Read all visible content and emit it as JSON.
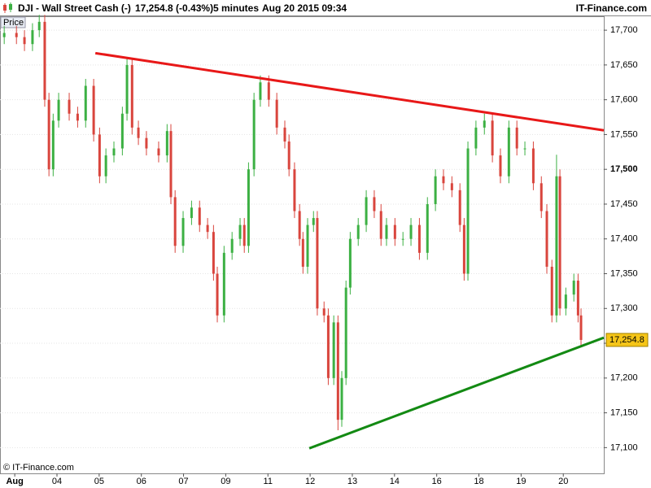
{
  "header": {
    "symbol": "DJI - Wall Street Cash (-)",
    "quote": "17,254.8 (-0.43%)",
    "interval": "5 minutes",
    "timestamp": "Aug 20 2015 09:34",
    "brand": "IT-Finance.com"
  },
  "chart_data": {
    "type": "candlestick",
    "axis_label": "Price",
    "copyright": "© IT-Finance.com",
    "up_color": "#3cb043",
    "down_color": "#d9453d",
    "grid": true,
    "bold_ytick": 17500,
    "xlim": [
      -0.35,
      13.96
    ],
    "ylim": [
      17063,
      17720
    ],
    "xticks": [
      {
        "value": 0,
        "label": "Aug"
      },
      {
        "value": 1,
        "label": "04"
      },
      {
        "value": 2,
        "label": "05"
      },
      {
        "value": 3,
        "label": "06"
      },
      {
        "value": 4,
        "label": "07"
      },
      {
        "value": 5,
        "label": "09"
      },
      {
        "value": 6,
        "label": "11"
      },
      {
        "value": 7,
        "label": "12"
      },
      {
        "value": 8,
        "label": "13"
      },
      {
        "value": 9,
        "label": "14"
      },
      {
        "value": 10,
        "label": "16"
      },
      {
        "value": 11,
        "label": "18"
      },
      {
        "value": 12,
        "label": "19"
      },
      {
        "value": 13,
        "label": "20"
      }
    ],
    "yticks": [
      {
        "value": 17100,
        "label": "17,100"
      },
      {
        "value": 17150,
        "label": "17,150"
      },
      {
        "value": 17200,
        "label": "17,200"
      },
      {
        "value": 17250,
        "label": "17,250"
      },
      {
        "value": 17300,
        "label": "17,300"
      },
      {
        "value": 17350,
        "label": "17,350"
      },
      {
        "value": 17400,
        "label": "17,400"
      },
      {
        "value": 17450,
        "label": "17,450"
      },
      {
        "value": 17500,
        "label": "17,500"
      },
      {
        "value": 17550,
        "label": "17,550"
      },
      {
        "value": 17600,
        "label": "17,600"
      },
      {
        "value": 17650,
        "label": "17,650"
      },
      {
        "value": 17700,
        "label": "17,700"
      }
    ],
    "x": [
      -0.25,
      0.04,
      0.23,
      0.42,
      0.58,
      0.71,
      0.81,
      0.91,
      1.04,
      1.29,
      1.49,
      1.68,
      1.87,
      2.01,
      2.16,
      2.35,
      2.55,
      2.66,
      2.78,
      2.93,
      3.12,
      3.41,
      3.61,
      3.7,
      3.8,
      3.99,
      4.19,
      4.38,
      4.57,
      4.71,
      4.8,
      4.96,
      5.15,
      5.34,
      5.44,
      5.54,
      5.67,
      5.82,
      6.02,
      6.21,
      6.4,
      6.5,
      6.63,
      6.75,
      6.83,
      6.94,
      7.08,
      7.17,
      7.33,
      7.43,
      7.56,
      7.66,
      7.75,
      7.85,
      7.95,
      8.14,
      8.33,
      8.52,
      8.68,
      8.81,
      9.01,
      9.2,
      9.39,
      9.59,
      9.78,
      9.97,
      10.16,
      10.36,
      10.55,
      10.65,
      10.74,
      10.93,
      11.13,
      11.32,
      11.51,
      11.71,
      11.9,
      12.09,
      12.29,
      12.48,
      12.61,
      12.73,
      12.84,
      12.92,
      13.06,
      13.25,
      13.35,
      13.42
    ],
    "open": [
      17690,
      17696,
      17690,
      17680,
      17700,
      17712,
      17600,
      17500,
      17570,
      17600,
      17580,
      17570,
      17620,
      17550,
      17490,
      17520,
      17530,
      17580,
      17650,
      17560,
      17545,
      17530,
      17520,
      17555,
      17460,
      17390,
      17430,
      17445,
      17420,
      17410,
      17350,
      17290,
      17380,
      17400,
      17420,
      17390,
      17500,
      17600,
      17625,
      17600,
      17560,
      17540,
      17500,
      17440,
      17400,
      17360,
      17420,
      17430,
      17300,
      17290,
      17200,
      17280,
      17140,
      17200,
      17330,
      17400,
      17420,
      17460,
      17440,
      17400,
      17420,
      17400,
      17400,
      17420,
      17380,
      17450,
      17490,
      17480,
      17470,
      17420,
      17350,
      17530,
      17560,
      17570,
      17520,
      17490,
      17560,
      17530,
      17530,
      17480,
      17440,
      17360,
      17290,
      17490,
      17300,
      17320,
      17340,
      17290
    ],
    "high": [
      17706,
      17706,
      17700,
      17710,
      17722,
      17722,
      17610,
      17580,
      17610,
      17610,
      17590,
      17630,
      17630,
      17560,
      17530,
      17540,
      17590,
      17660,
      17660,
      17570,
      17555,
      17540,
      17565,
      17565,
      17470,
      17440,
      17455,
      17455,
      17430,
      17420,
      17360,
      17390,
      17410,
      17430,
      17430,
      17510,
      17610,
      17635,
      17635,
      17610,
      17570,
      17550,
      17510,
      17450,
      17410,
      17430,
      17440,
      17440,
      17310,
      17300,
      17290,
      17290,
      17210,
      17340,
      17410,
      17430,
      17470,
      17470,
      17450,
      17430,
      17430,
      17410,
      17430,
      17430,
      17460,
      17500,
      17500,
      17490,
      17480,
      17430,
      17540,
      17570,
      17580,
      17580,
      17530,
      17570,
      17570,
      17540,
      17540,
      17490,
      17450,
      17370,
      17521,
      17500,
      17330,
      17350,
      17350,
      17300
    ],
    "low": [
      17680,
      17680,
      17670,
      17670,
      17690,
      17590,
      17490,
      17490,
      17560,
      17570,
      17560,
      17560,
      17540,
      17480,
      17480,
      17510,
      17520,
      17570,
      17550,
      17535,
      17520,
      17510,
      17510,
      17450,
      17380,
      17380,
      17420,
      17410,
      17400,
      17340,
      17280,
      17280,
      17370,
      17390,
      17380,
      17380,
      17490,
      17590,
      17590,
      17550,
      17530,
      17490,
      17430,
      17390,
      17350,
      17350,
      17410,
      17290,
      17280,
      17190,
      17190,
      17125,
      17130,
      17190,
      17320,
      17390,
      17410,
      17430,
      17390,
      17390,
      17390,
      17390,
      17390,
      17370,
      17370,
      17440,
      17470,
      17460,
      17410,
      17340,
      17340,
      17520,
      17550,
      17510,
      17480,
      17480,
      17520,
      17520,
      17470,
      17430,
      17350,
      17280,
      17280,
      17290,
      17290,
      17310,
      17280,
      17245
    ],
    "close": [
      17696,
      17690,
      17680,
      17700,
      17712,
      17600,
      17500,
      17570,
      17600,
      17580,
      17570,
      17620,
      17550,
      17490,
      17520,
      17530,
      17580,
      17650,
      17560,
      17545,
      17530,
      17520,
      17555,
      17460,
      17390,
      17430,
      17445,
      17420,
      17410,
      17350,
      17290,
      17380,
      17400,
      17420,
      17390,
      17500,
      17600,
      17625,
      17600,
      17560,
      17540,
      17500,
      17440,
      17400,
      17360,
      17420,
      17430,
      17300,
      17290,
      17200,
      17280,
      17140,
      17200,
      17330,
      17400,
      17420,
      17460,
      17440,
      17400,
      17420,
      17400,
      17400,
      17420,
      17380,
      17450,
      17490,
      17480,
      17470,
      17420,
      17350,
      17530,
      17560,
      17570,
      17520,
      17490,
      17560,
      17530,
      17530,
      17480,
      17440,
      17360,
      17290,
      17490,
      17300,
      17320,
      17340,
      17290,
      17254.8
    ],
    "last": {
      "value": 17254.8,
      "label": "17,254.8"
    },
    "trendlines": [
      {
        "color": "#e81818",
        "x": [
          1.91,
          13.96
        ],
        "y": [
          17667,
          17556
        ]
      },
      {
        "color": "#138a13",
        "x": [
          6.98,
          13.96
        ],
        "y": [
          17099,
          17258
        ]
      }
    ]
  }
}
